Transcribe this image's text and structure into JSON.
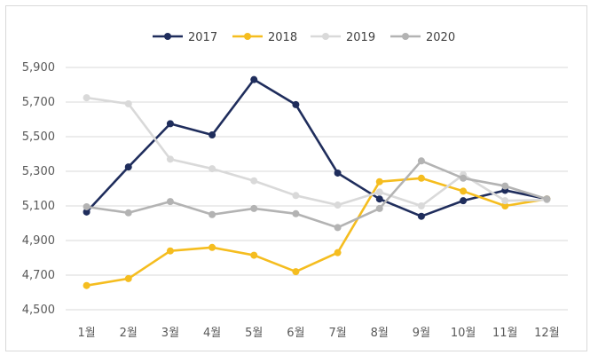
{
  "chart_data": {
    "type": "line",
    "title": "",
    "xlabel": "",
    "ylabel": "",
    "categories": [
      "1월",
      "2월",
      "3월",
      "4월",
      "5월",
      "6월",
      "7월",
      "8월",
      "9월",
      "10월",
      "11월",
      "12월"
    ],
    "ylim": [
      4500,
      5900
    ],
    "yticks": [
      4500,
      4700,
      4900,
      5100,
      5300,
      5500,
      5700,
      5900
    ],
    "ytick_labels": [
      "4,500",
      "4,700",
      "4,900",
      "5,100",
      "5,300",
      "5,500",
      "5,700",
      "5,900"
    ],
    "grid": true,
    "legend_position": "top",
    "series": [
      {
        "name": "2017",
        "color": "#1f2d5c",
        "values": [
          5065,
          5325,
          5575,
          5510,
          5830,
          5685,
          5290,
          5140,
          5040,
          5130,
          5190,
          5140
        ]
      },
      {
        "name": "2018",
        "color": "#f5bd1f",
        "values": [
          4640,
          4680,
          4840,
          4860,
          4815,
          4720,
          4830,
          5240,
          5260,
          5185,
          5100,
          5140
        ]
      },
      {
        "name": "2019",
        "color": "#d9d9d9",
        "values": [
          5725,
          5690,
          5370,
          5315,
          5245,
          5160,
          5105,
          5180,
          5100,
          5280,
          5130,
          5135
        ]
      },
      {
        "name": "2020",
        "color": "#b3b3b3",
        "values": [
          5095,
          5060,
          5125,
          5050,
          5085,
          5055,
          4975,
          5085,
          5360,
          5260,
          5215,
          5140
        ]
      }
    ]
  }
}
